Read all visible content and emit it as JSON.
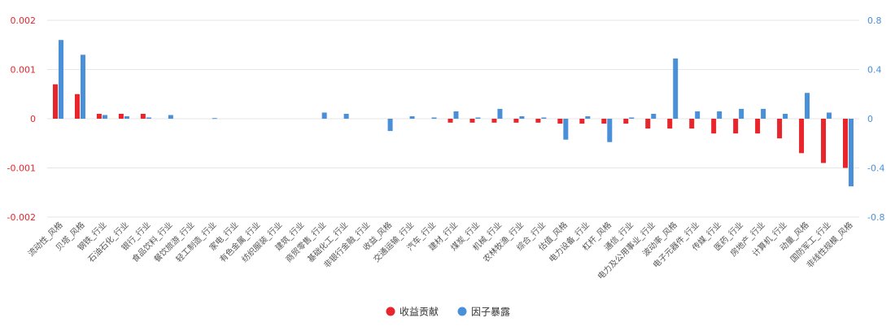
{
  "chart_data": {
    "type": "bar",
    "categories": [
      "流动性_风格",
      "贝塔_风格",
      "钢铁_行业",
      "石油石化_行业",
      "银行_行业",
      "食品饮料_行业",
      "餐饮旅游_行业",
      "轻工制造_行业",
      "家电_行业",
      "有色金属_行业",
      "纺织服装_行业",
      "建筑_行业",
      "商贸零售_行业",
      "基础化工_行业",
      "非银行金融_行业",
      "收益_风格",
      "交通运输_行业",
      "汽车_行业",
      "建材_行业",
      "煤炭_行业",
      "机械_行业",
      "农林牧渔_行业",
      "综合_行业",
      "估值_风格",
      "电力设备_行业",
      "杠杆_风格",
      "通信_行业",
      "电力及公用事业_行业",
      "波动率_风格",
      "电子元器件_行业",
      "传媒_行业",
      "医药_行业",
      "房地产_行业",
      "计算机_行业",
      "动量_风格",
      "国防军工_行业",
      "非线性规模_风格"
    ],
    "series": [
      {
        "name": "收益贡献",
        "color": "#e8252b",
        "axis": "left",
        "values": [
          0.0007,
          0.0005,
          0.0001,
          0.0001,
          0.0001,
          0,
          0,
          0,
          0,
          0,
          0,
          0,
          0,
          0,
          0,
          0,
          0,
          0,
          -8e-05,
          -8e-05,
          -8e-05,
          -8e-05,
          -8e-05,
          -0.0001,
          -0.0001,
          -0.0001,
          -0.0001,
          -0.0002,
          -0.0002,
          -0.0002,
          -0.0003,
          -0.0003,
          -0.0003,
          -0.0004,
          -0.0007,
          -0.0009,
          -0.001
        ]
      },
      {
        "name": "因子暴露",
        "color": "#4a90d9",
        "axis": "right",
        "values": [
          0.64,
          0.52,
          0.03,
          0.02,
          0.01,
          0.03,
          0,
          0.005,
          0,
          0,
          0,
          0,
          0.05,
          0.04,
          0,
          -0.1,
          0.02,
          0.01,
          0.06,
          0.01,
          0.08,
          0.02,
          0.01,
          -0.17,
          0.02,
          -0.19,
          0.01,
          0.04,
          0.49,
          0.06,
          0.06,
          0.08,
          0.08,
          0.04,
          0.21,
          0.05,
          -0.55
        ]
      }
    ],
    "y_left": {
      "ylim": [
        -0.002,
        0.002
      ],
      "ticks": [
        "0.002",
        "0.001",
        "0",
        "-0.001",
        "-0.002"
      ],
      "tick_values": [
        0.002,
        0.001,
        0,
        -0.001,
        -0.002
      ],
      "color": "#e8252b"
    },
    "y_right": {
      "ylim": [
        -0.8,
        0.8
      ],
      "ticks": [
        "0.8",
        "0.4",
        "0",
        "-0.4",
        "-0.8"
      ],
      "tick_values": [
        0.8,
        0.4,
        0,
        -0.4,
        -0.8
      ],
      "color": "#4a90d9"
    },
    "grid": true,
    "legend_position": "bottom-center",
    "title": "",
    "xlabel": "",
    "ylabel": ""
  }
}
